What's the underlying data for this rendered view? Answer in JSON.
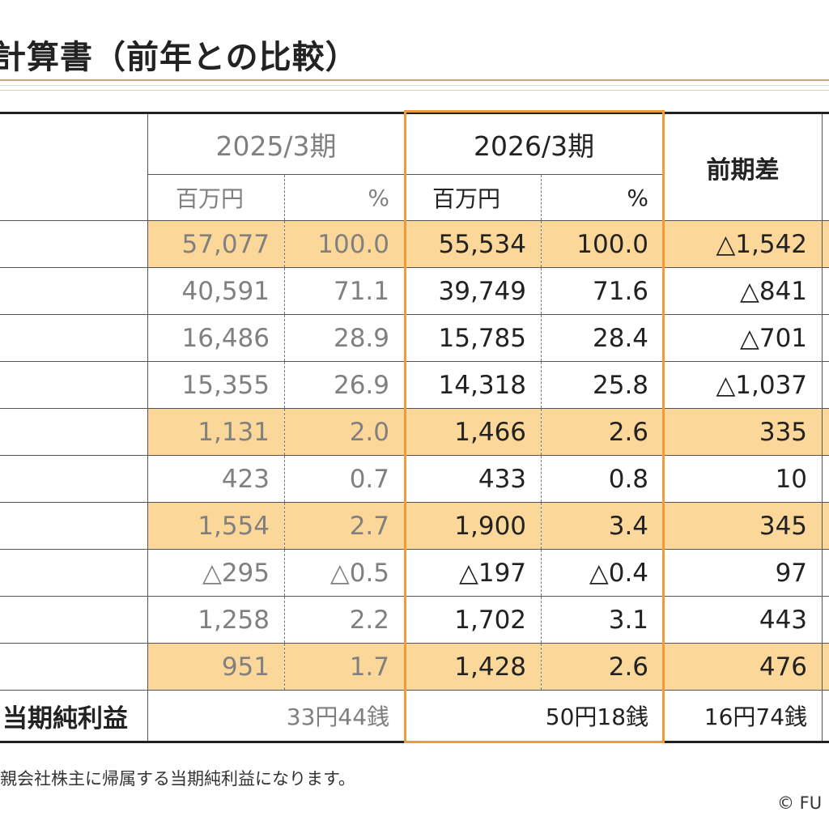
{
  "page_title": "計算書（前年との比較）",
  "table": {
    "period_prev": "2025/3期",
    "period_curr": "2026/3期",
    "diff_header": "前期差",
    "unit_yen": "百万円",
    "unit_pct": "%",
    "rows": [
      {
        "highlight": true,
        "prev_amount": "57,077",
        "prev_pct": "100.0",
        "curr_amount": "55,534",
        "curr_pct": "100.0",
        "diff": "△1,542"
      },
      {
        "highlight": false,
        "prev_amount": "40,591",
        "prev_pct": "71.1",
        "curr_amount": "39,749",
        "curr_pct": "71.6",
        "diff": "△841"
      },
      {
        "highlight": false,
        "prev_amount": "16,486",
        "prev_pct": "28.9",
        "curr_amount": "15,785",
        "curr_pct": "28.4",
        "diff": "△701"
      },
      {
        "highlight": false,
        "prev_amount": "15,355",
        "prev_pct": "26.9",
        "curr_amount": "14,318",
        "curr_pct": "25.8",
        "diff": "△1,037"
      },
      {
        "highlight": true,
        "prev_amount": "1,131",
        "prev_pct": "2.0",
        "curr_amount": "1,466",
        "curr_pct": "2.6",
        "diff": "335"
      },
      {
        "highlight": false,
        "prev_amount": "423",
        "prev_pct": "0.7",
        "curr_amount": "433",
        "curr_pct": "0.8",
        "diff": "10"
      },
      {
        "highlight": true,
        "prev_amount": "1,554",
        "prev_pct": "2.7",
        "curr_amount": "1,900",
        "curr_pct": "3.4",
        "diff": "345"
      },
      {
        "highlight": false,
        "prev_amount": "△295",
        "prev_pct": "△0.5",
        "curr_amount": "△197",
        "curr_pct": "△0.4",
        "diff": "97"
      },
      {
        "highlight": false,
        "prev_amount": "1,258",
        "prev_pct": "2.2",
        "curr_amount": "1,702",
        "curr_pct": "3.1",
        "diff": "443"
      },
      {
        "highlight": true,
        "prev_amount": "951",
        "prev_pct": "1.7",
        "curr_amount": "1,428",
        "curr_pct": "2.6",
        "diff": "476"
      }
    ],
    "last_row": {
      "label": "当期純利益",
      "prev": "33円44銭",
      "curr": "50円18銭",
      "diff": "16円74銭"
    }
  },
  "footnote": "親会社株主に帰属する当期純利益になります。",
  "copyright": "© FU",
  "colors": {
    "row_highlight": "#fbd89a",
    "frame_accent": "#f29a3a",
    "prev_period_text": "#808080"
  }
}
